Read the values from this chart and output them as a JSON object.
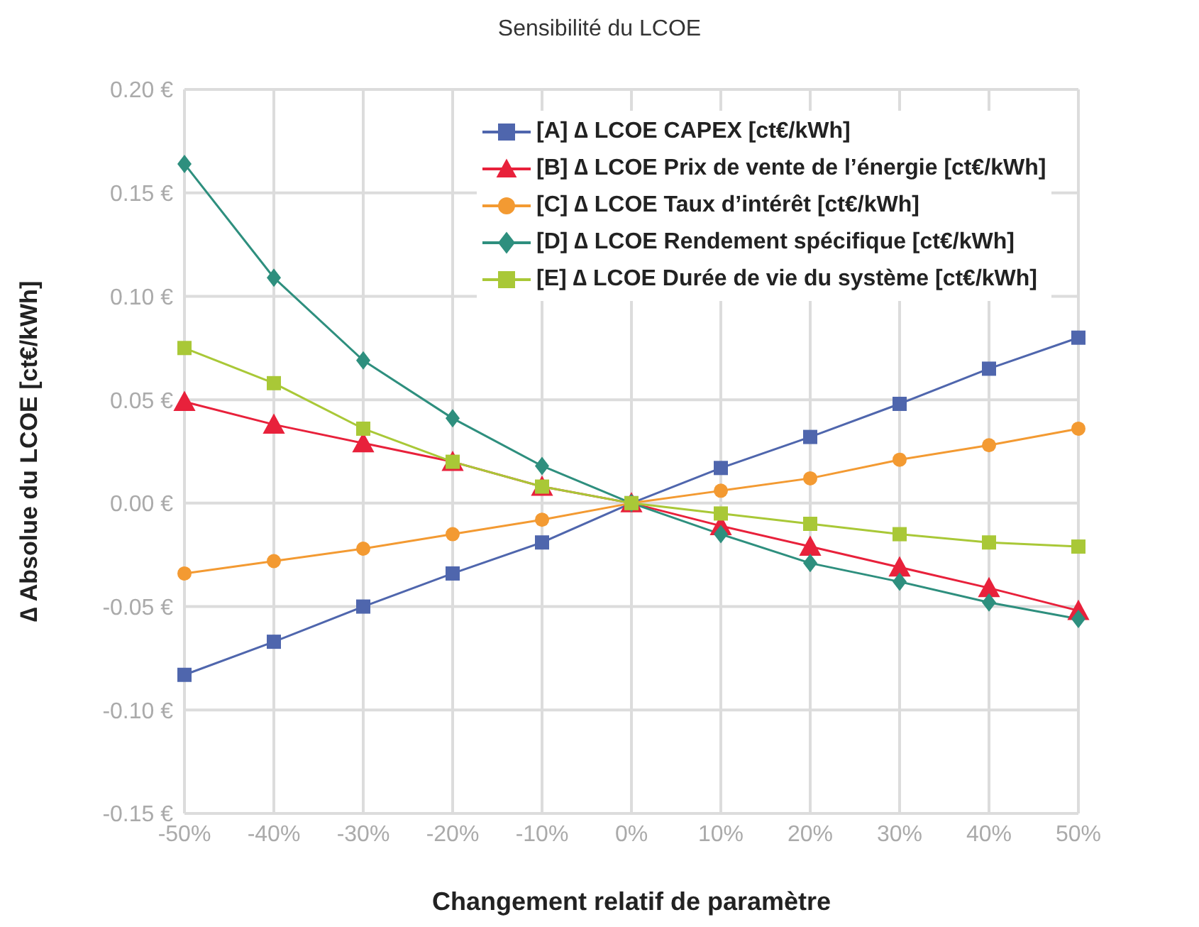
{
  "chart_data": {
    "type": "line",
    "title": "Sensibilité du LCOE",
    "xlabel": "Changement relatif de paramètre",
    "ylabel": "∆ Absolue du LCOE [ct€/kWh]",
    "categories": [
      "-50%",
      "-40%",
      "-30%",
      "-20%",
      "-10%",
      "0%",
      "10%",
      "20%",
      "30%",
      "40%",
      "50%"
    ],
    "series": [
      {
        "name": "[A] ∆ LCOE CAPEX [ct€/kWh]",
        "color": "#4f66ad",
        "marker": "square",
        "values": [
          -0.083,
          -0.067,
          -0.05,
          -0.034,
          -0.019,
          0,
          0.017,
          0.032,
          0.048,
          0.065,
          0.08
        ]
      },
      {
        "name": "[B] ∆ LCOE Prix de vente de l’énergie [ct€/kWh]",
        "color": "#e8213b",
        "marker": "triangle",
        "values": [
          0.049,
          0.038,
          0.029,
          0.02,
          0.008,
          0,
          -0.011,
          -0.021,
          -0.031,
          -0.041,
          -0.052
        ]
      },
      {
        "name": "[C] ∆ LCOE Taux d’intérêt [ct€/kWh]",
        "color": "#f39a32",
        "marker": "circle",
        "values": [
          -0.034,
          -0.028,
          -0.022,
          -0.015,
          -0.008,
          0,
          0.006,
          0.012,
          0.021,
          0.028,
          0.036
        ]
      },
      {
        "name": "[D] ∆ LCOE Rendement spécifique [ct€/kWh]",
        "color": "#2e8f7e",
        "marker": "diamond",
        "values": [
          0.164,
          0.109,
          0.069,
          0.041,
          0.018,
          0,
          -0.015,
          -0.029,
          -0.038,
          -0.048,
          -0.056
        ]
      },
      {
        "name": "[E] ∆ LCOE Durée de vie du système [ct€/kWh]",
        "color": "#a9c837",
        "marker": "square",
        "values": [
          0.075,
          0.058,
          0.036,
          0.02,
          0.008,
          0,
          -0.005,
          -0.01,
          -0.015,
          -0.019,
          -0.021
        ]
      }
    ],
    "ylim": [
      -0.15,
      0.2
    ],
    "yticks": [
      {
        "value": -0.15,
        "label": "-0.15 €"
      },
      {
        "value": -0.1,
        "label": "-0.10 €"
      },
      {
        "value": -0.05,
        "label": "-0.05 €"
      },
      {
        "value": 0,
        "label": "0.00 €"
      },
      {
        "value": 0.05,
        "label": "0.05 €"
      },
      {
        "value": 0.1,
        "label": "0.10 €"
      },
      {
        "value": 0.15,
        "label": "0.15 €"
      },
      {
        "value": 0.2,
        "label": "0.20 €"
      }
    ],
    "grid": true,
    "legend": "top right",
    "line_style": "solid"
  }
}
